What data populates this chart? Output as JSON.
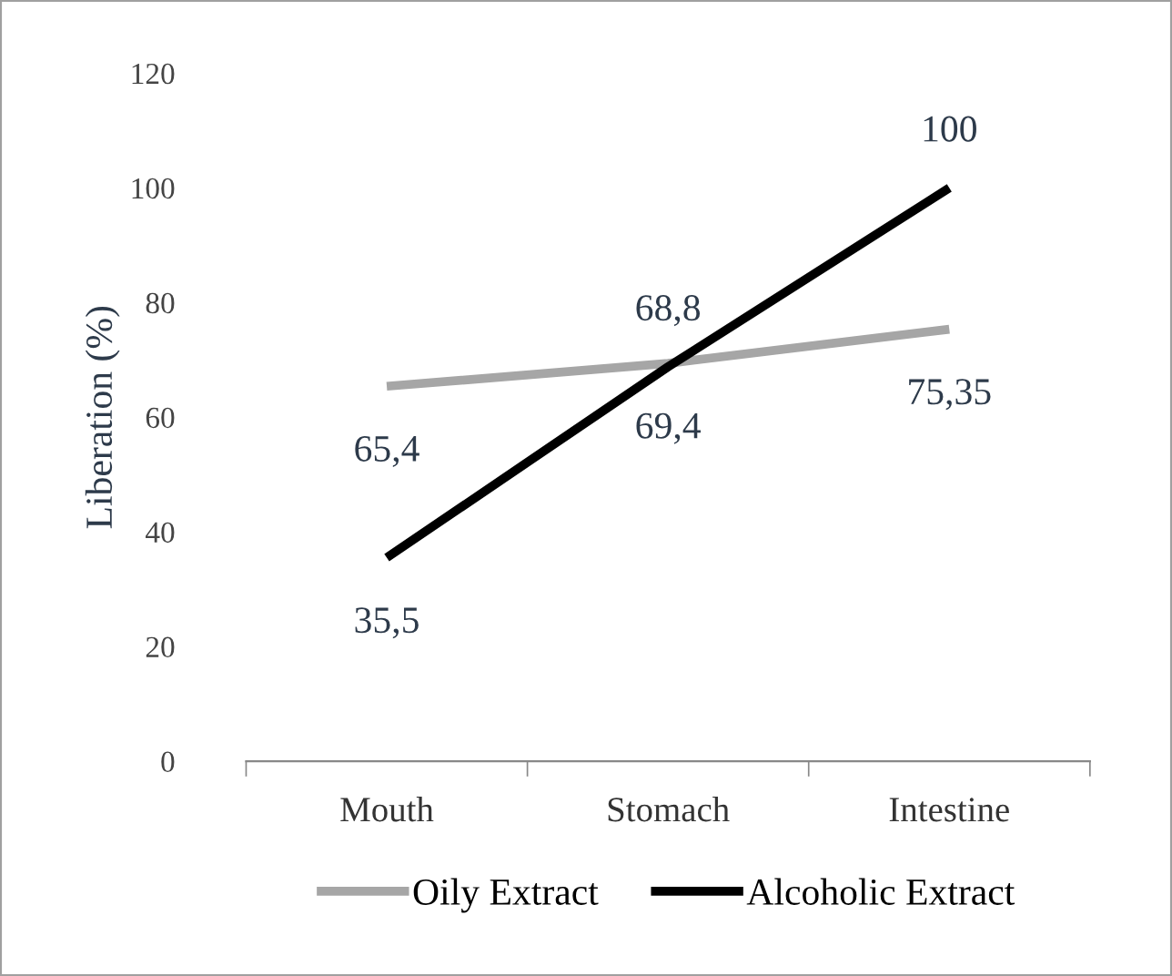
{
  "chart_data": {
    "type": "line",
    "ylabel": "Liberation (%)",
    "categories": [
      "Mouth",
      "Stomach",
      "Intestine"
    ],
    "series": [
      {
        "name": "Oily Extract",
        "color": "#a6a6a6",
        "values": [
          65.4,
          69.4,
          75.35
        ],
        "value_labels": [
          "65,4",
          "69,4",
          "75,35"
        ]
      },
      {
        "name": "Alcoholic Extract",
        "color": "#000000",
        "values": [
          35.5,
          68.8,
          100
        ],
        "value_labels": [
          "35,5",
          "68,8",
          "100"
        ]
      }
    ],
    "ylim": [
      0,
      120
    ],
    "yticks": [
      0,
      20,
      40,
      60,
      80,
      100,
      120
    ],
    "grid": false,
    "legend": "bottom",
    "marker": "none",
    "line_style": "solid"
  }
}
